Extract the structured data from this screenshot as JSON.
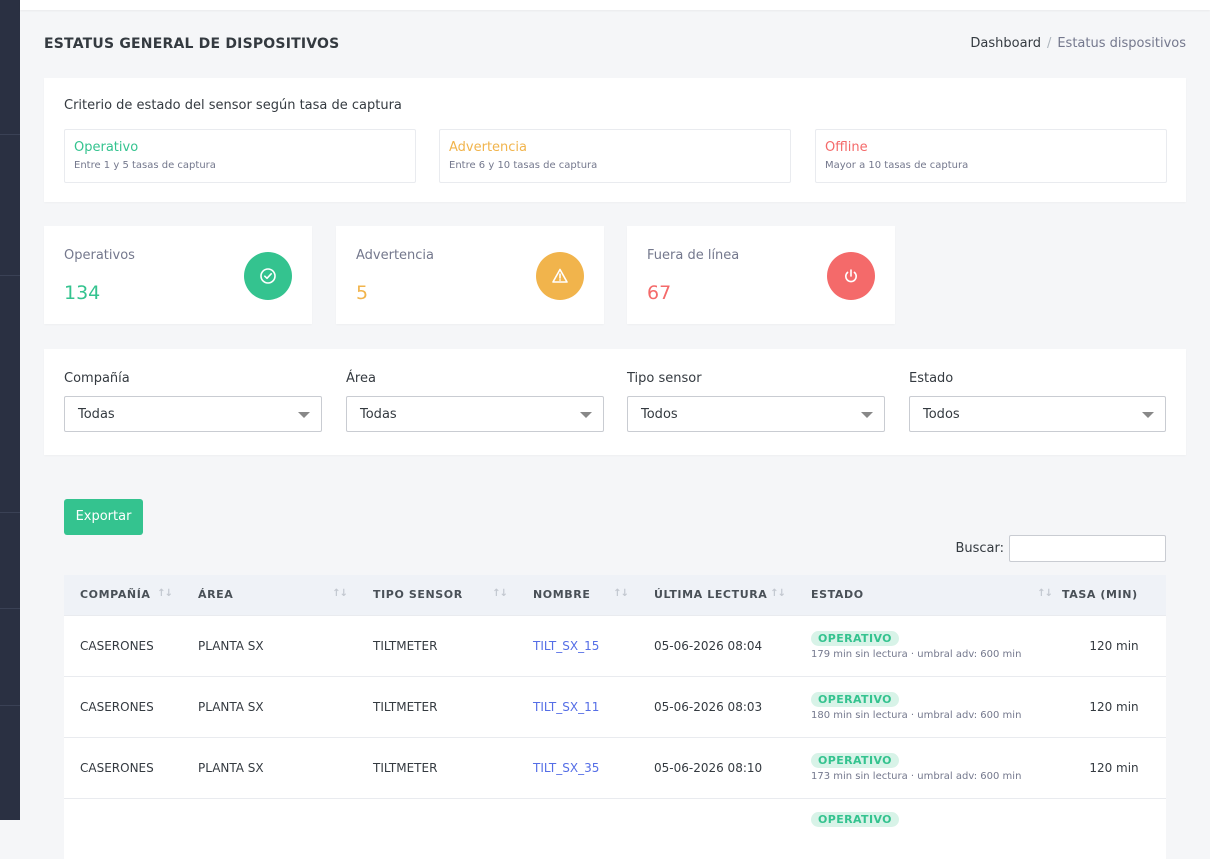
{
  "page": {
    "title": "ESTATUS GENERAL DE DISPOSITIVOS",
    "breadcrumb": {
      "home": "Dashboard",
      "current": "Estatus dispositivos"
    }
  },
  "criteria": {
    "title": "Criterio de estado del sensor según tasa de captura",
    "items": [
      {
        "label": "Operativo",
        "desc": "Entre 1 y 5 tasas de captura",
        "color": "#34c38f"
      },
      {
        "label": "Advertencia",
        "desc": "Entre 6 y 10 tasas de captura",
        "color": "#f1b44c"
      },
      {
        "label": "Offline",
        "desc": "Mayor a 10 tasas de captura",
        "color": "#f46a6a"
      }
    ]
  },
  "stats": [
    {
      "label": "Operativos",
      "value": "134",
      "color": "#34c38f",
      "icon": "check-circle-icon"
    },
    {
      "label": "Advertencia",
      "value": "5",
      "color": "#f1b44c",
      "icon": "warning-icon"
    },
    {
      "label": "Fuera de línea",
      "value": "67",
      "color": "#f46a6a",
      "icon": "power-icon"
    }
  ],
  "filters": [
    {
      "label": "Compañía",
      "value": "Todas"
    },
    {
      "label": "Área",
      "value": "Todas"
    },
    {
      "label": "Tipo sensor",
      "value": "Todos"
    },
    {
      "label": "Estado",
      "value": "Todos"
    }
  ],
  "toolbar": {
    "export_label": "Exportar",
    "search_label": "Buscar:",
    "search_value": ""
  },
  "table": {
    "headers": [
      "COMPAÑÍA",
      "ÁREA",
      "TIPO SENSOR",
      "NOMBRE",
      "ÚLTIMA LECTURA",
      "ESTADO",
      "TASA (MIN)"
    ],
    "rows": [
      {
        "company": "CASERONES",
        "area": "PLANTA SX",
        "type": "TILTMETER",
        "name": "TILT_SX_15",
        "last": "05-06-2026 08:04",
        "status": "OPERATIVO",
        "detail": "179 min sin lectura · umbral adv: 600 min",
        "rate": "120 min"
      },
      {
        "company": "CASERONES",
        "area": "PLANTA SX",
        "type": "TILTMETER",
        "name": "TILT_SX_11",
        "last": "05-06-2026 08:03",
        "status": "OPERATIVO",
        "detail": "180 min sin lectura · umbral adv: 600 min",
        "rate": "120 min"
      },
      {
        "company": "CASERONES",
        "area": "PLANTA SX",
        "type": "TILTMETER",
        "name": "TILT_SX_35",
        "last": "05-06-2026 08:10",
        "status": "OPERATIVO",
        "detail": "173 min sin lectura · umbral adv: 600 min",
        "rate": "120 min"
      },
      {
        "company": "",
        "area": "",
        "type": "",
        "name": "",
        "last": "",
        "status": "OPERATIVO",
        "detail": "",
        "rate": ""
      }
    ]
  }
}
